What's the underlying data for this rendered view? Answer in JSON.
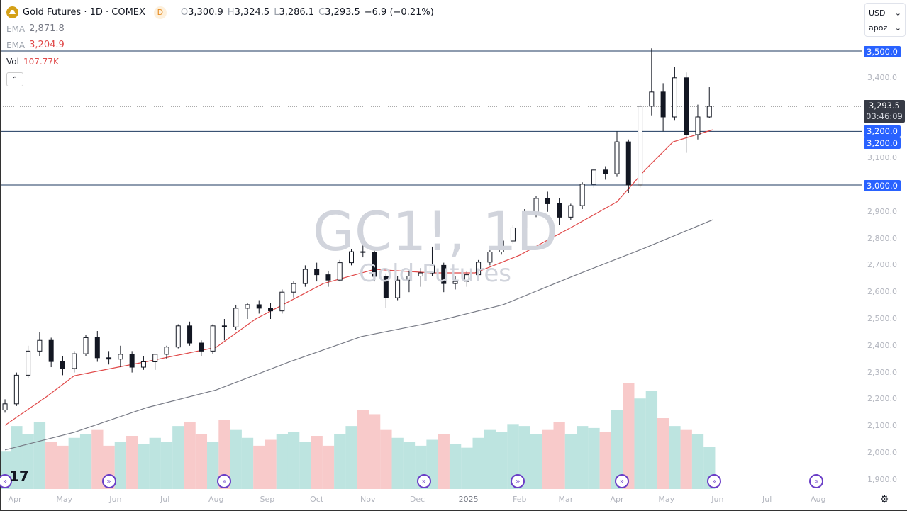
{
  "header": {
    "title": "Gold Futures · 1D · COMEX",
    "interval_badge": "D",
    "open_label": "O",
    "open": "3,300.9",
    "high_label": "H",
    "high": "3,324.5",
    "low_label": "L",
    "low": "3,286.1",
    "close_label": "C",
    "close": "3,293.5",
    "change": "−6.9 (−0.21%)"
  },
  "indicators": [
    {
      "label": "EMA",
      "value": "2,871.8",
      "color": "#787b86"
    },
    {
      "label": "EMA",
      "value": "3,204.9",
      "color": "#e04848"
    }
  ],
  "volume": {
    "label": "Vol",
    "value": "107.77K"
  },
  "selectors": {
    "currency": "USD",
    "unit": "apoz"
  },
  "watermark": {
    "symbol": "GC1!, 1D",
    "name": "Gold Futures"
  },
  "last_price": {
    "price": "3,293.5",
    "countdown": "03:46:09"
  },
  "horizontal_lines": [
    {
      "price": 3500,
      "label": "3,500.0"
    },
    {
      "price": 3200,
      "label": "3,200.0"
    },
    {
      "price": 3000,
      "label": "3,000.0"
    }
  ],
  "extra_tag": "3,200.0",
  "chart_data": {
    "type": "candlestick",
    "ylim": [
      1880,
      3560
    ],
    "price_ticks": [
      "3,400.0",
      "3,100.0",
      "2,900.0",
      "2,800.0",
      "2,700.0",
      "2,600.0",
      "2,500.0",
      "2,400.0",
      "2,300.0",
      "2,200.0",
      "2,100.0",
      "2,000.0",
      "1,900.0"
    ],
    "price_tick_values": [
      3400,
      3100,
      2900,
      2800,
      2700,
      2600,
      2500,
      2400,
      2300,
      2200,
      2100,
      2000,
      1900
    ],
    "x_ticks": [
      "Apr",
      "May",
      "Jun",
      "Jul",
      "Aug",
      "Sep",
      "Oct",
      "Nov",
      "Dec",
      "2025",
      "Feb",
      "Mar",
      "Apr",
      "May",
      "Jun",
      "Jul",
      "Aug"
    ],
    "x_tick_dates": [
      "2024-04-01",
      "2024-05-01",
      "2024-06-01",
      "2024-07-01",
      "2024-08-01",
      "2024-09-01",
      "2024-10-01",
      "2024-11-01",
      "2024-12-01",
      "2025-01-01",
      "2025-02-01",
      "2025-03-01",
      "2025-04-01",
      "2025-05-01",
      "2025-06-01",
      "2025-07-01",
      "2025-08-01"
    ],
    "candles": [
      [
        "2024-03-26",
        2160,
        2200,
        2150,
        2183
      ],
      [
        "2024-04-02",
        2183,
        2300,
        2175,
        2290
      ],
      [
        "2024-04-09",
        2290,
        2400,
        2280,
        2380
      ],
      [
        "2024-04-16",
        2380,
        2450,
        2360,
        2420
      ],
      [
        "2024-04-23",
        2420,
        2430,
        2320,
        2341
      ],
      [
        "2024-04-30",
        2341,
        2360,
        2290,
        2315
      ],
      [
        "2024-05-07",
        2315,
        2380,
        2300,
        2370
      ],
      [
        "2024-05-14",
        2370,
        2440,
        2360,
        2430
      ],
      [
        "2024-05-21",
        2430,
        2455,
        2340,
        2355
      ],
      [
        "2024-05-28",
        2355,
        2380,
        2330,
        2350
      ],
      [
        "2024-06-04",
        2350,
        2400,
        2320,
        2368
      ],
      [
        "2024-06-11",
        2368,
        2380,
        2300,
        2320
      ],
      [
        "2024-06-18",
        2320,
        2360,
        2310,
        2340
      ],
      [
        "2024-06-25",
        2340,
        2370,
        2310,
        2368
      ],
      [
        "2024-07-02",
        2368,
        2400,
        2350,
        2395
      ],
      [
        "2024-07-09",
        2395,
        2480,
        2390,
        2474
      ],
      [
        "2024-07-16",
        2474,
        2490,
        2400,
        2410
      ],
      [
        "2024-07-23",
        2410,
        2420,
        2360,
        2380
      ],
      [
        "2024-07-30",
        2380,
        2480,
        2370,
        2474
      ],
      [
        "2024-08-06",
        2474,
        2500,
        2420,
        2470
      ],
      [
        "2024-08-13",
        2470,
        2553,
        2460,
        2540
      ],
      [
        "2024-08-20",
        2540,
        2560,
        2500,
        2553
      ],
      [
        "2024-08-27",
        2553,
        2570,
        2520,
        2540
      ],
      [
        "2024-09-03",
        2540,
        2560,
        2500,
        2530
      ],
      [
        "2024-09-10",
        2530,
        2610,
        2520,
        2600
      ],
      [
        "2024-09-17",
        2600,
        2640,
        2580,
        2632
      ],
      [
        "2024-09-24",
        2632,
        2700,
        2620,
        2685
      ],
      [
        "2024-10-01",
        2685,
        2710,
        2640,
        2665
      ],
      [
        "2024-10-08",
        2665,
        2680,
        2620,
        2645
      ],
      [
        "2024-10-15",
        2645,
        2720,
        2640,
        2710
      ],
      [
        "2024-10-22",
        2710,
        2760,
        2700,
        2751
      ],
      [
        "2024-10-29",
        2751,
        2800,
        2730,
        2750
      ],
      [
        "2024-11-05",
        2750,
        2760,
        2640,
        2659
      ],
      [
        "2024-11-12",
        2659,
        2670,
        2540,
        2579
      ],
      [
        "2024-11-19",
        2579,
        2660,
        2570,
        2645
      ],
      [
        "2024-11-26",
        2645,
        2680,
        2600,
        2660
      ],
      [
        "2024-12-03",
        2660,
        2690,
        2620,
        2672
      ],
      [
        "2024-12-10",
        2672,
        2770,
        2660,
        2700
      ],
      [
        "2024-12-17",
        2700,
        2710,
        2600,
        2632
      ],
      [
        "2024-12-24",
        2632,
        2660,
        2610,
        2640
      ],
      [
        "2024-12-31",
        2640,
        2680,
        2620,
        2665
      ],
      [
        "2025-01-07",
        2665,
        2720,
        2650,
        2712
      ],
      [
        "2025-01-14",
        2712,
        2760,
        2700,
        2750
      ],
      [
        "2025-01-21",
        2750,
        2800,
        2740,
        2791
      ],
      [
        "2025-01-28",
        2791,
        2850,
        2780,
        2840
      ],
      [
        "2025-02-04",
        2840,
        2910,
        2830,
        2897
      ],
      [
        "2025-02-11",
        2897,
        2960,
        2880,
        2950
      ],
      [
        "2025-02-18",
        2950,
        2975,
        2900,
        2930
      ],
      [
        "2025-02-25",
        2930,
        2950,
        2850,
        2880
      ],
      [
        "2025-03-04",
        2880,
        2930,
        2870,
        2923
      ],
      [
        "2025-03-11",
        2923,
        3010,
        2910,
        3003
      ],
      [
        "2025-03-18",
        3003,
        3060,
        2990,
        3056
      ],
      [
        "2025-03-25",
        3056,
        3070,
        3020,
        3042
      ],
      [
        "2025-04-01",
        3042,
        3200,
        3030,
        3161
      ],
      [
        "2025-04-08",
        3161,
        3170,
        2970,
        3000
      ],
      [
        "2025-04-15",
        3000,
        3300,
        2990,
        3294
      ],
      [
        "2025-04-22",
        3294,
        3510,
        3260,
        3347
      ],
      [
        "2025-04-29",
        3347,
        3380,
        3200,
        3254
      ],
      [
        "2025-05-06",
        3254,
        3440,
        3240,
        3400
      ],
      [
        "2025-05-13",
        3400,
        3420,
        3120,
        3188
      ],
      [
        "2025-05-20",
        3188,
        3300,
        3170,
        3254
      ],
      [
        "2025-05-27",
        3254,
        3365,
        3250,
        3293.5
      ]
    ],
    "volume_k": [
      95,
      160,
      140,
      170,
      120,
      110,
      130,
      140,
      150,
      110,
      120,
      135,
      115,
      130,
      120,
      160,
      170,
      140,
      120,
      175,
      150,
      130,
      110,
      125,
      140,
      145,
      120,
      135,
      110,
      140,
      160,
      200,
      190,
      150,
      130,
      120,
      110,
      125,
      140,
      115,
      105,
      130,
      150,
      145,
      165,
      160,
      140,
      150,
      170,
      140,
      160,
      155,
      145,
      200,
      270,
      230,
      250,
      180,
      160,
      150,
      140,
      108
    ],
    "ema_fast": [
      [
        "2024-03-26",
        2103
      ],
      [
        "2024-04-20",
        2209
      ],
      [
        "2024-05-07",
        2288
      ],
      [
        "2024-06-20",
        2341
      ],
      [
        "2024-08-01",
        2394
      ],
      [
        "2024-08-25",
        2500
      ],
      [
        "2024-10-05",
        2632
      ],
      [
        "2024-11-05",
        2685
      ],
      [
        "2024-12-10",
        2672
      ],
      [
        "2025-01-05",
        2672
      ],
      [
        "2025-02-01",
        2738
      ],
      [
        "2025-03-05",
        2844
      ],
      [
        "2025-04-01",
        2937
      ],
      [
        "2025-04-18",
        3056
      ],
      [
        "2025-05-05",
        3161
      ],
      [
        "2025-05-29",
        3206
      ]
    ],
    "ema_slow": [
      [
        "2024-03-26",
        2011
      ],
      [
        "2024-05-07",
        2077
      ],
      [
        "2024-06-20",
        2169
      ],
      [
        "2024-08-01",
        2235
      ],
      [
        "2024-09-15",
        2341
      ],
      [
        "2024-10-28",
        2434
      ],
      [
        "2024-12-10",
        2487
      ],
      [
        "2025-01-22",
        2553
      ],
      [
        "2025-03-05",
        2659
      ],
      [
        "2025-04-18",
        2765
      ],
      [
        "2025-05-29",
        2870
      ]
    ],
    "colors": {
      "up": "#131722",
      "down": "#131722",
      "ema_fast": "#e04848",
      "ema_slow": "#787b86",
      "hline": "#1e3a5f",
      "vol_up": "#b2dfdb",
      "vol_down": "#f7c1c1"
    }
  },
  "events": [
    "2024-03-26",
    "2024-05-28",
    "2024-08-06",
    "2024-12-05",
    "2025-01-31",
    "2025-04-04",
    "2025-05-30",
    "2025-07-31"
  ]
}
